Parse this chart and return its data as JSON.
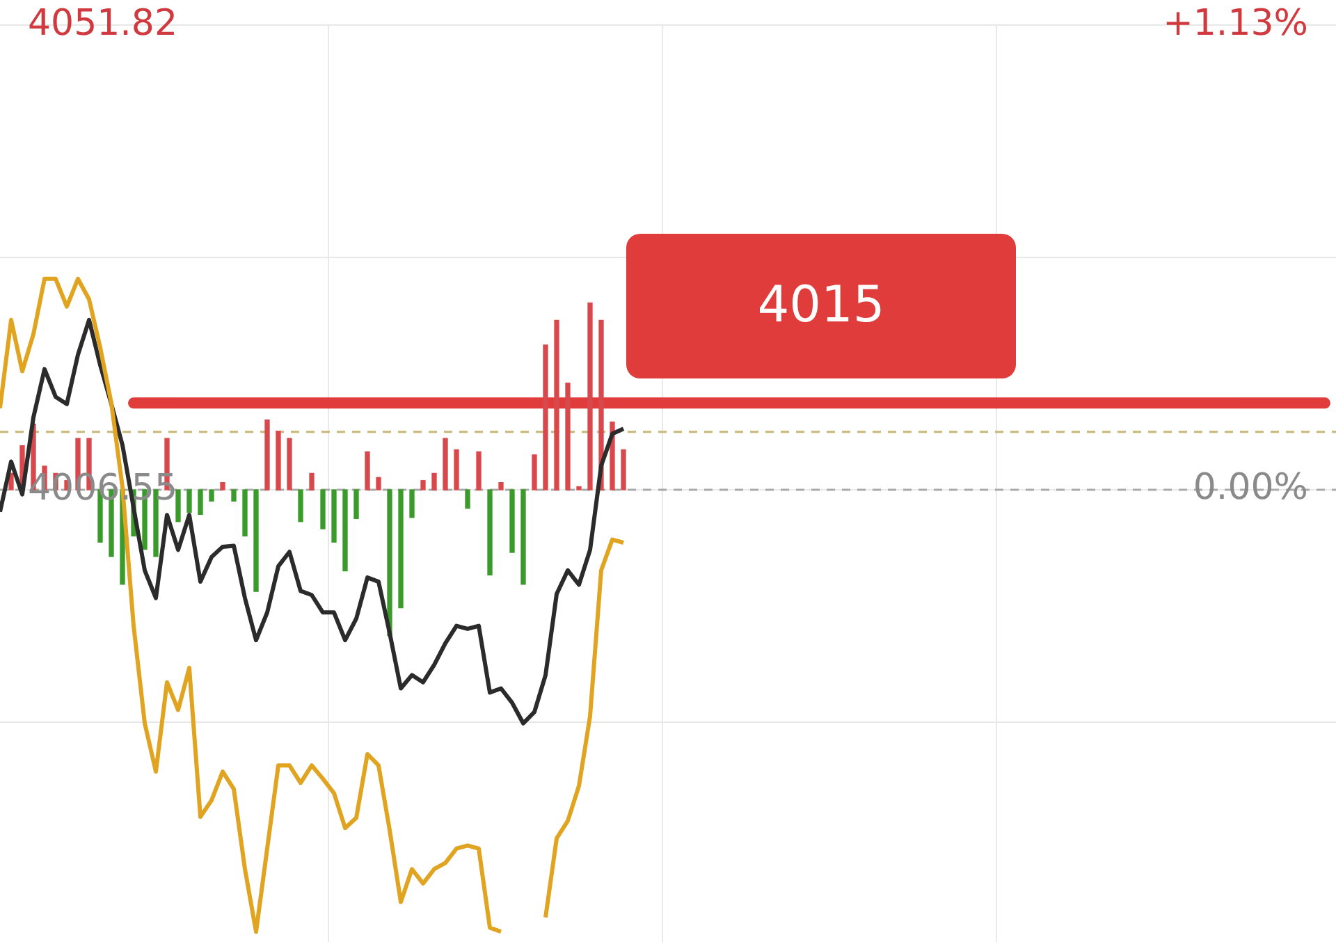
{
  "chart_data": {
    "type": "line",
    "categories": [
      null,
      null,
      null,
      null,
      null,
      null,
      null,
      null,
      null,
      null,
      null,
      null,
      null,
      null,
      null,
      null,
      null,
      null,
      null,
      null,
      null,
      null,
      null,
      null,
      null,
      null,
      null,
      null,
      null,
      null,
      null,
      null,
      null,
      null,
      null,
      null,
      null,
      null,
      null,
      null,
      null,
      null,
      null,
      null,
      null,
      null,
      null,
      null,
      null,
      null,
      null,
      null,
      null,
      null,
      null,
      null,
      null,
      null,
      null,
      null,
      null,
      null,
      null,
      null,
      null,
      null,
      null,
      null,
      null,
      null,
      null,
      null,
      null,
      null,
      null,
      null,
      null,
      null,
      null,
      null,
      null,
      null,
      null,
      null,
      null,
      null,
      null,
      null,
      null,
      null,
      null,
      null,
      null,
      null,
      null,
      null,
      null,
      null,
      null,
      null,
      null,
      null,
      null,
      null,
      null,
      null,
      null,
      null,
      null,
      null,
      null,
      null,
      null,
      null,
      null,
      null,
      null,
      null,
      null,
      null,
      null
    ],
    "series": [
      {
        "type": "bar",
        "base": [
          null,
          4006.55,
          4006.55,
          4006.55,
          4006.55,
          4006.55,
          4006.55,
          4006.55,
          4006.55,
          4006.55,
          4006.55,
          4006.55,
          4006.55,
          4006.55,
          4006.55,
          4006.55,
          4006.55,
          4006.55,
          4006.55,
          4006.55,
          4006.55,
          4006.55,
          4006.55,
          4006.55,
          4006.55,
          4006.55,
          4006.55,
          4006.55,
          4006.55,
          4006.55,
          4006.55,
          4006.55,
          4006.55,
          4006.55,
          4006.55,
          4006.55,
          4006.55,
          4006.55,
          4006.55,
          4006.55,
          4006.55,
          4006.55,
          4006.55,
          4006.55,
          4006.55,
          4006.55,
          4006.55,
          4006.55,
          4006.55,
          4006.55,
          4006.55,
          4006.55,
          4006.55,
          4006.55,
          4006.55,
          4006.55,
          4006.55,
          null,
          null,
          null,
          null,
          null,
          null,
          null,
          null,
          null,
          null,
          null,
          null,
          null,
          null,
          null,
          null,
          null,
          null,
          null,
          null,
          null,
          null,
          null,
          null,
          null,
          null,
          null,
          null,
          null,
          null,
          null,
          null,
          null,
          null,
          null,
          null,
          null,
          null,
          null,
          null,
          null,
          null,
          null,
          null,
          null,
          null,
          null,
          null,
          null,
          null,
          null,
          null,
          null,
          null,
          null,
          null,
          null,
          null,
          null,
          null,
          null,
          null,
          null,
          null
        ],
        "values": [
          null,
          1.6,
          4.3,
          6.4,
          2.3,
          1.6,
          0.9,
          5.0,
          5.0,
          -5.1,
          -6.5,
          -9.2,
          -4.5,
          -5.8,
          -6.5,
          5.0,
          -3.1,
          -2.2,
          -2.4,
          -1.1,
          0.7,
          -1.1,
          -4.5,
          -9.9,
          6.8,
          5.7,
          5.0,
          -3.1,
          1.6,
          -3.8,
          -5.1,
          -7.9,
          -2.8,
          3.7,
          1.2,
          -14.2,
          -11.5,
          -2.7,
          0.9,
          1.6,
          5.0,
          3.9,
          -1.8,
          3.7,
          -8.3,
          0.7,
          -6.1,
          -9.2,
          3.4,
          14.1,
          16.5,
          10.4,
          0.3,
          18.2,
          16.5,
          6.6,
          3.9,
          null,
          null,
          null,
          null,
          null,
          null,
          null,
          null,
          null,
          null,
          null,
          null,
          null,
          null,
          null,
          null,
          null,
          null,
          null,
          null,
          null,
          null,
          null,
          null,
          null,
          null,
          null,
          null,
          null,
          null,
          null,
          null,
          null,
          null,
          null,
          null,
          null,
          null,
          null,
          null,
          null,
          null,
          null,
          null,
          null,
          null,
          null,
          null,
          null,
          null,
          null,
          null,
          null,
          null,
          null,
          null,
          null,
          null,
          null,
          null,
          null,
          null,
          null,
          null
        ],
        "colors": [
          "#d9484c",
          "#d9484c",
          "#d9484c",
          "#d9484c",
          "#d9484c",
          "#d9484c",
          "#d9484c",
          "#d9484c",
          "#d9484c",
          "#3a9a2a",
          "#3a9a2a",
          "#3a9a2a",
          "#3a9a2a",
          "#3a9a2a",
          "#3a9a2a",
          "#d9484c",
          "#3a9a2a",
          "#3a9a2a",
          "#3a9a2a",
          "#3a9a2a",
          "#d9484c",
          "#3a9a2a",
          "#3a9a2a",
          "#3a9a2a",
          "#d9484c",
          "#d9484c",
          "#d9484c",
          "#3a9a2a",
          "#d9484c",
          "#3a9a2a",
          "#3a9a2a",
          "#3a9a2a",
          "#3a9a2a",
          "#d9484c",
          "#d9484c",
          "#3a9a2a",
          "#3a9a2a",
          "#3a9a2a",
          "#d9484c",
          "#d9484c",
          "#d9484c",
          "#d9484c",
          "#3a9a2a",
          "#d9484c",
          "#3a9a2a",
          "#d9484c",
          "#3a9a2a",
          "#3a9a2a",
          "#d9484c",
          "#d9484c",
          "#d9484c",
          "#d9484c",
          "#d9484c",
          "#d9484c",
          "#d9484c",
          "#d9484c",
          "#d9484c",
          null,
          null,
          null,
          null,
          null,
          null,
          null,
          null,
          null,
          null,
          null,
          null,
          null,
          null,
          null,
          null,
          null,
          null,
          null,
          null,
          null,
          null,
          null,
          null,
          null,
          null,
          null,
          null,
          null,
          null,
          null,
          null,
          null,
          null,
          null,
          null,
          null,
          null,
          null,
          null,
          null,
          null,
          null,
          null,
          null,
          null,
          null,
          null,
          null,
          null,
          null,
          null,
          null,
          null,
          null,
          null,
          null,
          null,
          null,
          null,
          null,
          null,
          null,
          null
        ]
      },
      {
        "color": "#e0a420",
        "values": [
          4014.5,
          4023.1,
          4018.1,
          4021.7,
          4027.1,
          4027.1,
          4024.4,
          4027.1,
          4025.1,
          4020.4,
          4015.0,
          4006.8,
          3993.3,
          3983.8,
          3979.1,
          3987.8,
          3985.1,
          3989.2,
          3974.7,
          3976.3,
          3979.1,
          3977.4,
          3969.6,
          3963.5,
          3971.6,
          3979.7,
          3979.7,
          3978.0,
          3979.7,
          3978.4,
          3977.0,
          3973.6,
          3974.6,
          3980.8,
          3979.7,
          3973.4,
          3966.4,
          3969.6,
          3968.2,
          3969.6,
          3970.2,
          3971.6,
          3971.9,
          3971.6,
          3963.9,
          3963.5,
          null,
          null,
          null,
          3964.9,
          3972.6,
          3974.3,
          3977.7,
          3984.5,
          3998.7,
          4001.7,
          4001.4,
          null,
          null,
          null,
          null,
          null,
          null,
          null,
          null,
          null,
          null,
          null,
          null,
          null,
          null,
          null,
          null,
          null,
          null,
          null,
          null,
          null,
          null,
          null,
          null,
          null,
          null,
          null,
          null,
          null,
          null,
          null,
          null,
          null,
          null,
          null,
          null,
          null,
          null,
          null,
          null,
          null,
          null,
          null,
          null,
          null,
          null,
          null,
          null,
          null,
          null,
          null,
          null,
          null,
          null,
          null,
          null,
          null,
          null,
          null,
          null,
          null,
          null,
          null,
          null
        ]
      },
      {
        "color": "#2b2b2b",
        "values": [
          4004.4,
          4009.3,
          4006.1,
          4013.6,
          4018.3,
          4015.6,
          4014.9,
          4019.7,
          4023.1,
          4018.7,
          4014.9,
          4010.9,
          4004.8,
          3998.7,
          3996.0,
          4004.1,
          4000.7,
          4004.1,
          3997.6,
          4000.0,
          4001.0,
          4001.1,
          3996.0,
          3991.9,
          3994.6,
          3999.1,
          4000.5,
          3996.7,
          3996.3,
          3994.6,
          3994.6,
          3991.9,
          3994.0,
          3998.0,
          3997.6,
          3992.6,
          3987.2,
          3988.5,
          3987.8,
          3989.5,
          3991.6,
          3993.3,
          3993.0,
          3993.3,
          3986.8,
          3987.2,
          3985.8,
          3983.8,
          3984.9,
          3988.5,
          3996.4,
          3998.7,
          3997.3,
          4000.7,
          4008.9,
          4012.0,
          4012.5,
          null,
          null,
          null,
          null,
          null,
          null,
          null,
          null,
          null,
          null,
          null,
          null,
          null,
          null,
          null,
          null,
          null,
          null,
          null,
          null,
          null,
          null,
          null,
          null,
          null,
          null,
          null,
          null,
          null,
          null,
          null,
          null,
          null,
          null,
          null,
          null,
          null,
          null,
          null,
          null,
          null,
          null,
          null,
          null,
          null,
          null,
          null,
          null,
          null,
          null,
          null,
          null,
          null,
          null,
          null,
          null,
          null,
          null,
          null,
          null,
          null,
          null,
          null,
          null
        ]
      }
    ],
    "ylim": [
      3962.5,
      4051.82
    ],
    "yticks": [
      4051.82,
      {
        "value": 4029.19,
        "label": null
      },
      4006.55,
      {
        "value": 3983.92,
        "label": null
      }
    ],
    "y2lim": [
      -1.1,
      1.13
    ],
    "y2ticks": [
      {
        "value": 1.13,
        "label": "+1.13%"
      },
      {
        "value": 0,
        "label": "0.00%"
      }
    ],
    "ref_lines": [
      {
        "axis": "y",
        "value": 4015,
        "label": "4015",
        "color": "#e03c3c"
      },
      {
        "axis": "y",
        "value": 4012.2,
        "color": "#c8b878",
        "line_style": "dashed"
      },
      {
        "axis": "y",
        "value": 4006.55,
        "color": "#aaaaaa",
        "line_style": "dashed"
      }
    ],
    "grid": true,
    "legend": false
  }
}
